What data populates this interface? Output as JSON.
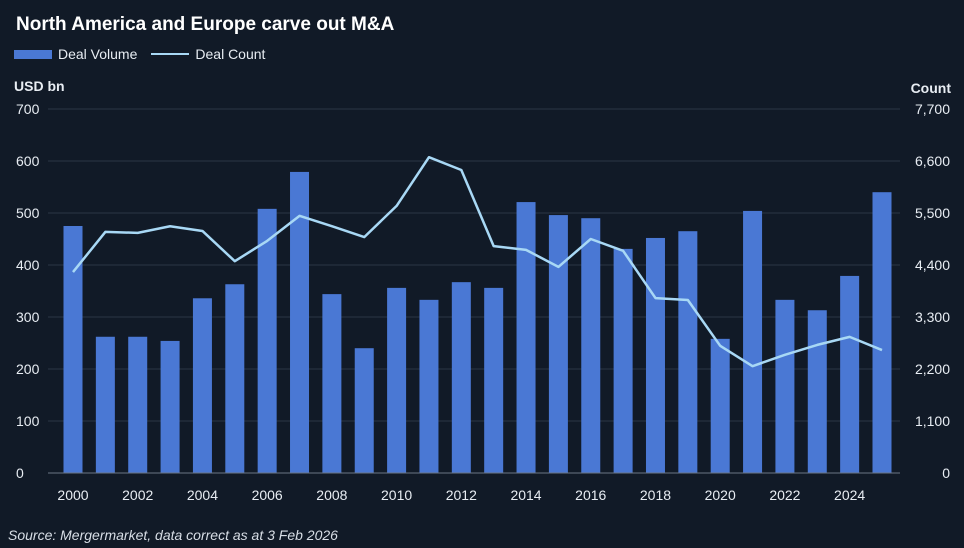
{
  "chart_data": {
    "type": "bar+line",
    "title": "North America and Europe carve out M&A",
    "ylabel": "USD bn",
    "ylabel_right": "Count",
    "ylim": [
      0,
      700
    ],
    "ylim_right": [
      0,
      7700
    ],
    "yticks": [
      "0",
      "100",
      "200",
      "300",
      "400",
      "500",
      "600",
      "700"
    ],
    "yticks_right": [
      "0",
      "1,100",
      "2,200",
      "3,300",
      "4,400",
      "5,500",
      "6,600",
      "7,700"
    ],
    "xtick_labels": [
      "2000",
      "2002",
      "2004",
      "2006",
      "2008",
      "2010",
      "2012",
      "2014",
      "2016",
      "2018",
      "2020",
      "2022",
      "2024"
    ],
    "categories": [
      2000,
      2001,
      2002,
      2003,
      2004,
      2005,
      2006,
      2007,
      2008,
      2009,
      2010,
      2011,
      2012,
      2013,
      2014,
      2015,
      2016,
      2017,
      2018,
      2019,
      2020,
      2021,
      2022,
      2023,
      2024,
      2025
    ],
    "grid": true,
    "legend_position": "top-left",
    "series": [
      {
        "name": "Deal Volume",
        "type": "bar",
        "axis": "left",
        "color": "#4a78d4",
        "values": [
          475,
          262,
          262,
          254,
          336,
          363,
          508,
          579,
          344,
          240,
          356,
          333,
          367,
          356,
          521,
          496,
          490,
          431,
          452,
          465,
          258,
          504,
          333,
          313,
          379,
          540
        ]
      },
      {
        "name": "Deal Count",
        "type": "line",
        "axis": "right",
        "color": "#a8d8f5",
        "values": [
          4250,
          5100,
          5080,
          5220,
          5120,
          4480,
          4910,
          5440,
          5220,
          4990,
          5650,
          6680,
          6410,
          4800,
          4720,
          4360,
          4950,
          4700,
          3700,
          3660,
          2690,
          2260,
          2500,
          2710,
          2880,
          2600
        ]
      }
    ],
    "source": "Source: Mergermarket, data correct as at 3 Feb 2026"
  }
}
